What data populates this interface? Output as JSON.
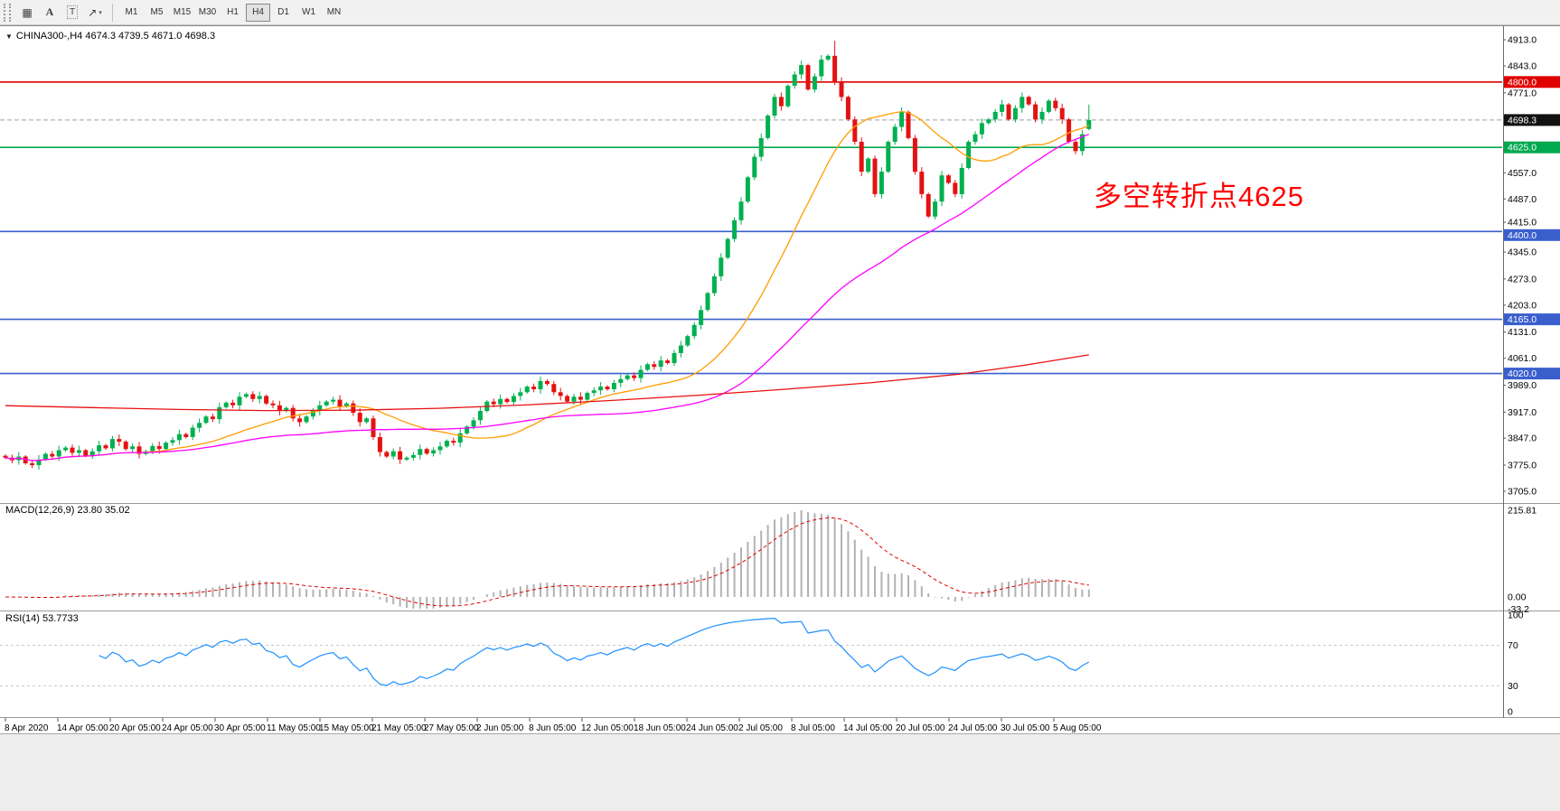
{
  "window": {
    "title": "CHINA300-,H4"
  },
  "toolbar": {
    "tools": [
      {
        "name": "chart-grid-tool",
        "glyph": "▦"
      },
      {
        "name": "text-annotation-tool",
        "glyph": "A"
      },
      {
        "name": "text-box-tool",
        "glyph": "T",
        "boxed": true
      },
      {
        "name": "arrow-draw-tool",
        "glyph": "↗",
        "dropdown": "▾"
      }
    ],
    "timeframes": [
      "M1",
      "M5",
      "M15",
      "M30",
      "H1",
      "H4",
      "D1",
      "W1",
      "MN"
    ],
    "active_timeframe": "H4"
  },
  "chart": {
    "symbol_info": "CHINA300-,H4 4674.3 4739.5 4671.0 4698.3",
    "annotation": {
      "text": "多空转折点4625",
      "color": "#ff0000"
    },
    "colors": {
      "up": "#00b050",
      "down": "#e31212",
      "ma_fast": "#ff9d00",
      "ma_mid": "#ff00ff",
      "ma_slow": "#e81010",
      "macd_hist": "#b2b2b2",
      "macd_signal": "#e00000",
      "rsi": "#1e90ff",
      "level_red": "#e00000",
      "level_green": "#00a84e",
      "level_blue": "#3a5fcd",
      "current_line": "#9aa0a6",
      "current_bg": "#111111"
    },
    "price_axis": {
      "ticks": [
        4913.0,
        4843.0,
        4771.0,
        4557.0,
        4487.0,
        4415.0,
        4345.0,
        4273.0,
        4203.0,
        4131.0,
        4061.0,
        3989.0,
        3917.0,
        3847.0,
        3775.0,
        3705.0
      ],
      "levels": [
        {
          "price": 4800.0,
          "label": "4800.0",
          "line": "#e00000",
          "bg": "#e00000",
          "width": 1.6
        },
        {
          "price": 4625.0,
          "label": "4625.0",
          "line": "#00a84e",
          "bg": "#00a84e",
          "width": 1.6
        },
        {
          "price": 4400.0,
          "label": "4400.0",
          "line": "#3a5fcd",
          "bg": "#3a5fcd",
          "width": 1.6
        },
        {
          "price": 4165.0,
          "label": "4165.0",
          "line": "#3a5fcd",
          "bg": "#3a5fcd",
          "width": 1.6
        },
        {
          "price": 4020.0,
          "label": "4020.0",
          "line": "#3a5fcd",
          "bg": "#3a5fcd",
          "width": 1.6
        },
        {
          "price": 4698.3,
          "label": "4698.3",
          "line": "#9aa0a6",
          "bg": "#111111",
          "width": 1,
          "dash": "5,3"
        }
      ]
    }
  },
  "chart_data": {
    "type": "candlestick",
    "symbol": "CHINA300-",
    "timeframe": "H4",
    "ohlc": {
      "open": 4674.3,
      "high": 4739.5,
      "low": 4671.0,
      "close": 4698.3
    },
    "price_range": [
      3705.0,
      4913.0
    ],
    "horizontal_levels": [
      4800.0,
      4625.0,
      4400.0,
      4165.0,
      4020.0
    ],
    "first_open": 3800,
    "closes": [
      3795,
      3788,
      3798,
      3780,
      3775,
      3790,
      3805,
      3798,
      3815,
      3822,
      3808,
      3815,
      3800,
      3812,
      3828,
      3820,
      3845,
      3838,
      3818,
      3825,
      3805,
      3812,
      3826,
      3818,
      3835,
      3842,
      3858,
      3850,
      3875,
      3888,
      3905,
      3898,
      3930,
      3942,
      3935,
      3958,
      3965,
      3952,
      3960,
      3940,
      3935,
      3920,
      3928,
      3900,
      3890,
      3905,
      3920,
      3935,
      3945,
      3950,
      3932,
      3940,
      3915,
      3890,
      3900,
      3850,
      3810,
      3798,
      3812,
      3790,
      3795,
      3802,
      3818,
      3806,
      3815,
      3825,
      3840,
      3835,
      3860,
      3878,
      3895,
      3920,
      3945,
      3938,
      3952,
      3944,
      3960,
      3970,
      3985,
      3978,
      4000,
      3992,
      3970,
      3960,
      3945,
      3958,
      3950,
      3968,
      3975,
      3985,
      3978,
      3995,
      4005,
      4015,
      4008,
      4030,
      4045,
      4038,
      4055,
      4048,
      4075,
      4095,
      4120,
      4150,
      4190,
      4235,
      4280,
      4330,
      4380,
      4430,
      4480,
      4545,
      4600,
      4650,
      4710,
      4760,
      4735,
      4790,
      4820,
      4845,
      4780,
      4815,
      4860,
      4870,
      4800,
      4760,
      4700,
      4640,
      4560,
      4595,
      4500,
      4560,
      4640,
      4680,
      4720,
      4650,
      4560,
      4500,
      4440,
      4480,
      4550,
      4530,
      4500,
      4570,
      4640,
      4660,
      4690,
      4700,
      4720,
      4740,
      4700,
      4730,
      4760,
      4740,
      4700,
      4720,
      4750,
      4730,
      4700,
      4640,
      4615,
      4660,
      4698.3
    ],
    "current_bar": [
      4674.3,
      4739.5,
      4671.0,
      4698.3
    ],
    "spikes": [
      {
        "index": 124,
        "high": 4910
      }
    ],
    "time_labels": [
      "8 Apr 2020",
      "14 Apr 05:00",
      "20 Apr 05:00",
      "24 Apr 05:00",
      "30 Apr 05:00",
      "11 May 05:00",
      "15 May 05:00",
      "21 May 05:00",
      "27 May 05:00",
      "2 Jun 05:00",
      "8 Jun 05:00",
      "12 Jun 05:00",
      "18 Jun 05:00",
      "24 Jun 05:00",
      "2 Jul 05:00",
      "8 Jul 05:00",
      "14 Jul 05:00",
      "20 Jul 05:00",
      "24 Jul 05:00",
      "30 Jul 05:00",
      "5 Aug 05:00"
    ],
    "overlays": {
      "ma_fast": {
        "type": "sma",
        "period": 21
      },
      "ma_mid": {
        "type": "sma",
        "period": 55
      },
      "ma_slow": {
        "type": "long-ma",
        "points": [
          [
            0,
            3934
          ],
          [
            0.08,
            3929
          ],
          [
            0.16,
            3924
          ],
          [
            0.24,
            3921
          ],
          [
            0.32,
            3922
          ],
          [
            0.4,
            3927
          ],
          [
            0.48,
            3936
          ],
          [
            0.56,
            3948
          ],
          [
            0.64,
            3962
          ],
          [
            0.72,
            3978
          ],
          [
            0.8,
            3996
          ],
          [
            0.88,
            4018
          ],
          [
            0.94,
            4042
          ],
          [
            1,
            4070
          ]
        ]
      }
    },
    "macd": {
      "label": "MACD(12,26,9) 23.80 35.02",
      "params": [
        12,
        26,
        9
      ],
      "main": 23.8,
      "signal": 35.02,
      "axis": [
        "215.81",
        "0.00",
        "-33.2"
      ]
    },
    "rsi": {
      "label": "RSI(14) 53.7733",
      "period": 14,
      "value": 53.7733,
      "axis": [
        "100",
        "70",
        "30",
        "0"
      ],
      "levels": [
        70,
        30
      ]
    }
  }
}
